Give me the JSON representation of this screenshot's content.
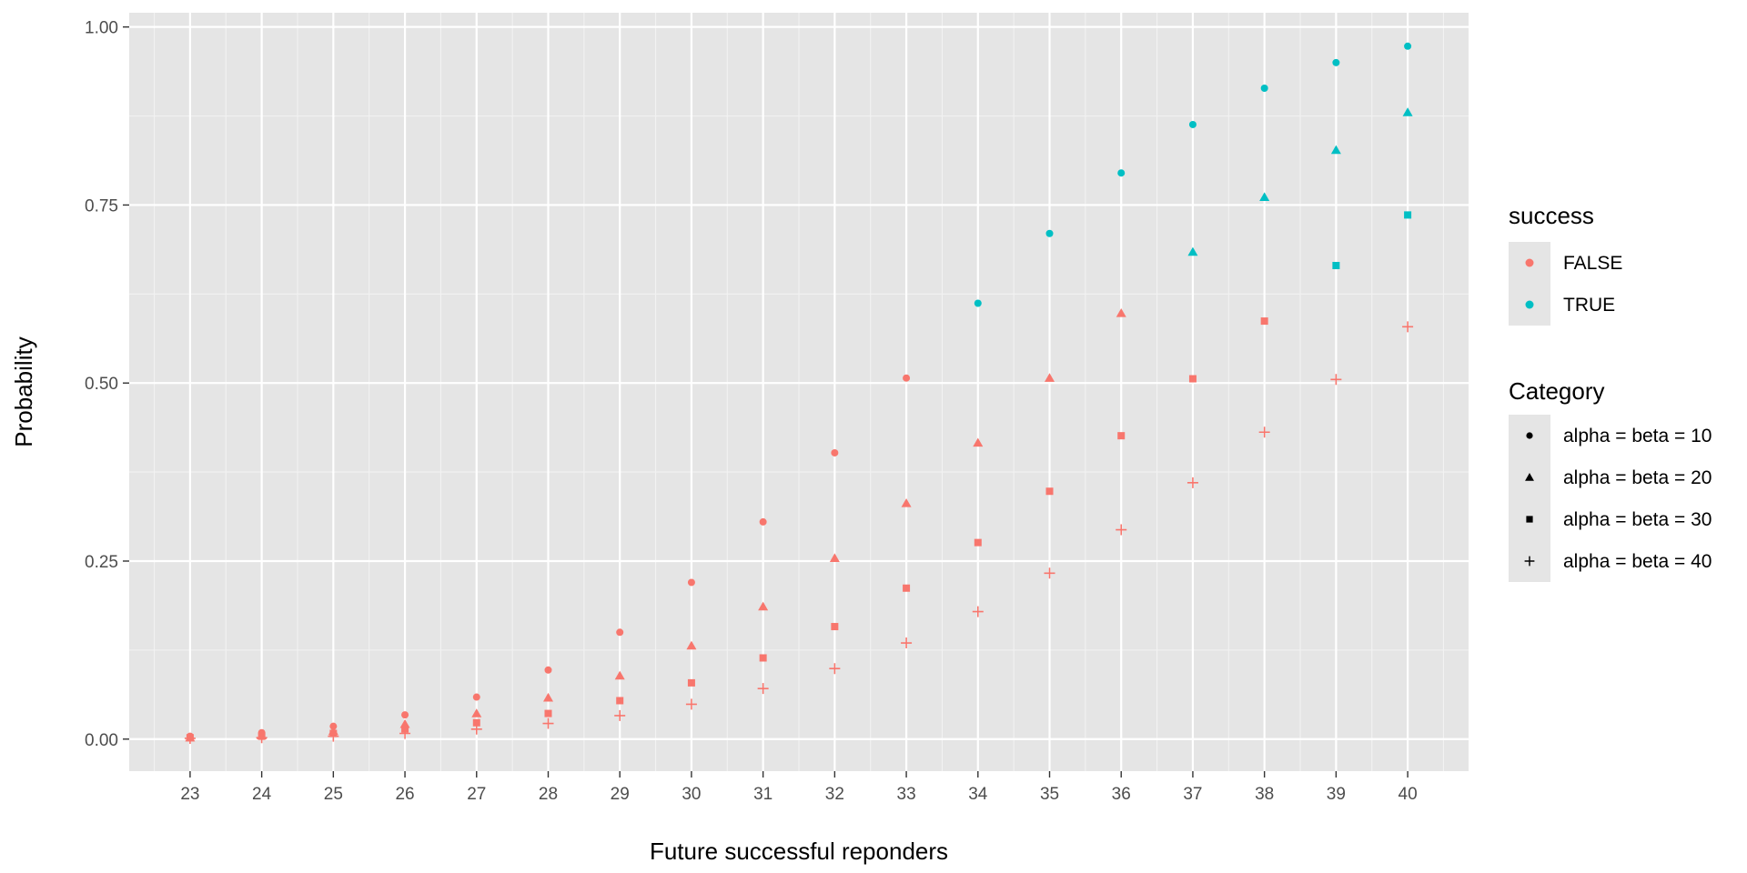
{
  "chart_data": {
    "type": "scatter",
    "title": "",
    "xlabel": "Future successful reponders",
    "ylabel": "Probability",
    "xlim": [
      22.15,
      40.85
    ],
    "ylim": [
      -0.045,
      1.02
    ],
    "x_ticks": [
      "23",
      "24",
      "25",
      "26",
      "27",
      "28",
      "29",
      "30",
      "31",
      "32",
      "33",
      "34",
      "35",
      "36",
      "37",
      "38",
      "39",
      "40"
    ],
    "y_ticks": [
      "0.00",
      "0.25",
      "0.50",
      "0.75",
      "1.00"
    ],
    "grid": true,
    "colors": {
      "FALSE": "#F8766D",
      "TRUE": "#00BFC4"
    },
    "x": [
      23,
      24,
      25,
      26,
      27,
      28,
      29,
      30,
      31,
      32,
      33,
      34,
      35,
      36,
      37,
      38,
      39,
      40
    ],
    "success_threshold": 0.6,
    "series": [
      {
        "name": "alpha = beta = 10",
        "shape": "circle",
        "values": [
          0.004,
          0.009,
          0.018,
          0.034,
          0.059,
          0.097,
          0.15,
          0.22,
          0.305,
          0.402,
          0.507,
          0.612,
          0.71,
          0.795,
          0.863,
          0.914,
          0.95,
          0.973
        ]
      },
      {
        "name": "alpha = beta = 20",
        "shape": "triangle",
        "values": [
          0.002,
          0.005,
          0.011,
          0.021,
          0.036,
          0.058,
          0.089,
          0.131,
          0.186,
          0.254,
          0.331,
          0.416,
          0.507,
          0.598,
          0.684,
          0.761,
          0.827,
          0.88
        ]
      },
      {
        "name": "alpha = beta = 30",
        "shape": "square",
        "values": [
          0.002,
          0.004,
          0.008,
          0.014,
          0.023,
          0.036,
          0.054,
          0.079,
          0.114,
          0.158,
          0.212,
          0.276,
          0.348,
          0.426,
          0.506,
          0.587,
          0.665,
          0.736
        ]
      },
      {
        "name": "alpha = beta = 40",
        "shape": "plus",
        "values": [
          0.001,
          0.002,
          0.004,
          0.008,
          0.014,
          0.022,
          0.033,
          0.049,
          0.071,
          0.099,
          0.135,
          0.179,
          0.233,
          0.294,
          0.36,
          0.431,
          0.505,
          0.579
        ]
      }
    ],
    "legends": [
      {
        "title": "success",
        "type": "color",
        "entries": [
          "FALSE",
          "TRUE"
        ]
      },
      {
        "title": "Category",
        "type": "shape",
        "entries": [
          "alpha = beta = 10",
          "alpha = beta = 20",
          "alpha = beta = 30",
          "alpha = beta = 40"
        ]
      }
    ],
    "legend_position": "right"
  }
}
